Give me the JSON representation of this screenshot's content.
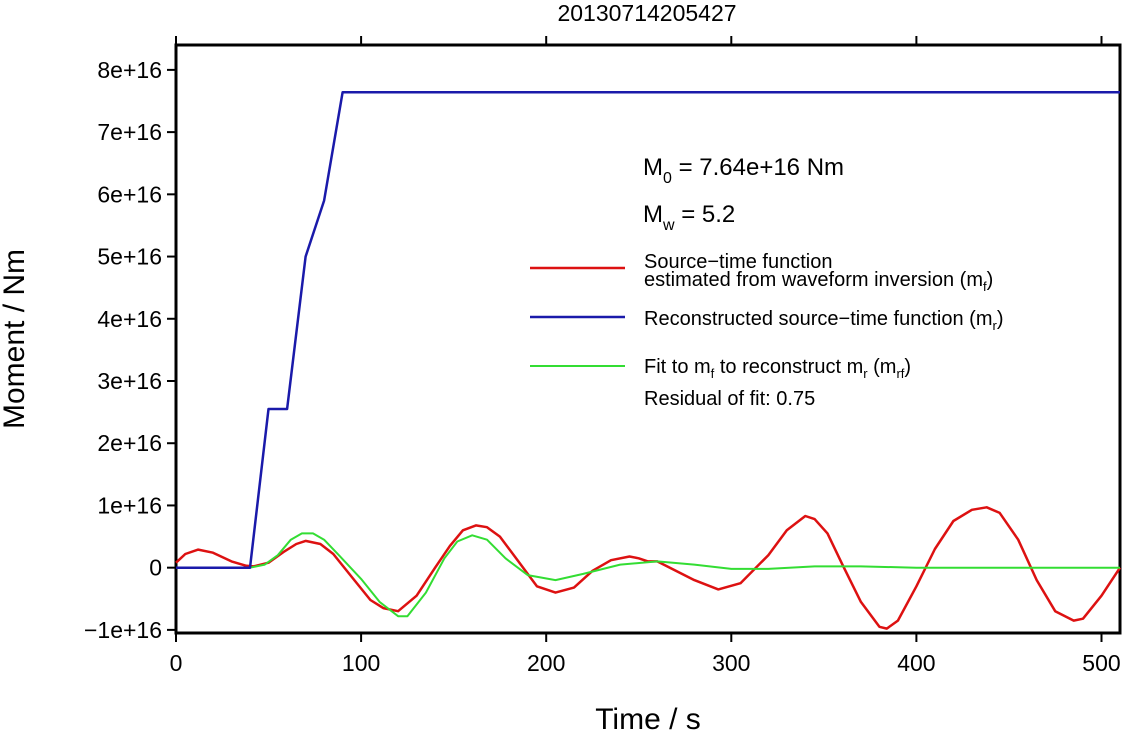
{
  "chart_data": {
    "type": "line",
    "title": "20130714205427",
    "xlabel": "Time / s",
    "ylabel": "Moment / Nm",
    "xlim": [
      0,
      510
    ],
    "ylim": [
      -1.05e+16,
      8.4e+16
    ],
    "x_ticks": [
      0,
      100,
      200,
      300,
      400,
      500
    ],
    "x_tick_labels": [
      "0",
      "100",
      "200",
      "300",
      "400",
      "500"
    ],
    "y_ticks": [
      -1e+16,
      0,
      1e+16,
      2e+16,
      3e+16,
      4e+16,
      5e+16,
      6e+16,
      7e+16,
      8e+16
    ],
    "y_tick_labels": [
      "−1e+16",
      "0",
      "1e+16",
      "2e+16",
      "3e+16",
      "4e+16",
      "5e+16",
      "6e+16",
      "7e+16",
      "8e+16"
    ],
    "grid": false,
    "legend_position": "right",
    "annotations": {
      "m0": "M0 = 7.64e+16 Nm",
      "m0_prefix": "M",
      "m0_sub": "0",
      "m0_rest": " = 7.64e+16 Nm",
      "mw": "Mw = 5.2",
      "mw_prefix": "M",
      "mw_sub": "w",
      "mw_rest": " = 5.2",
      "residual": "Residual of fit: 0.75"
    },
    "series": [
      {
        "name": "Source−time function estimated from waveform inversion (mf)",
        "legend_line1": "Source−time function",
        "legend_line2": "estimated from waveform inversion (m",
        "legend_sub": "f",
        "legend_tail": ")",
        "color": "#dd1111",
        "x": [
          0,
          5,
          12,
          20,
          30,
          38,
          42,
          50,
          58,
          65,
          70,
          78,
          85,
          95,
          105,
          112,
          120,
          130,
          140,
          148,
          155,
          162,
          168,
          175,
          185,
          195,
          205,
          215,
          225,
          235,
          245,
          250,
          255,
          260,
          270,
          280,
          293,
          305,
          320,
          330,
          340,
          345,
          352,
          360,
          370,
          380,
          384,
          390,
          400,
          410,
          420,
          430,
          438,
          445,
          455,
          465,
          475,
          485,
          490,
          500,
          510
        ],
        "values": [
          800000000000000.0,
          2200000000000000.0,
          2900000000000000.0,
          2400000000000000.0,
          1000000000000000.0,
          300000000000000.0,
          200000000000000.0,
          800000000000000.0,
          2500000000000000.0,
          3800000000000000.0,
          4300000000000000.0,
          3800000000000000.0,
          2200000000000000.0,
          -1500000000000000.0,
          -5200000000000000.0,
          -6500000000000000.0,
          -7000000000000000.0,
          -4500000000000000.0,
          0.0,
          3500000000000000.0,
          6000000000000000.0,
          6800000000000000.0,
          6500000000000000.0,
          5000000000000000.0,
          1000000000000000.0,
          -3000000000000000.0,
          -4000000000000000.0,
          -3200000000000000.0,
          -500000000000000.0,
          1200000000000000.0,
          1800000000000000.0,
          1500000000000000.0,
          1000000000000000.0,
          1000000000000000.0,
          -500000000000000.0,
          -2000000000000000.0,
          -3500000000000000.0,
          -2500000000000000.0,
          2000000000000000.0,
          6000000000000000.0,
          8300000000000000.0,
          7800000000000000.0,
          5500000000000000.0,
          500000000000000.0,
          -5500000000000000.0,
          -9500000000000000.0,
          -9800000000000000.0,
          -8500000000000000.0,
          -3000000000000000.0,
          3000000000000000.0,
          7500000000000000.0,
          9300000000000000.0,
          9700000000000000.0,
          8800000000000000.0,
          4500000000000000.0,
          -2000000000000000.0,
          -7000000000000000.0,
          -8500000000000000.0,
          -8200000000000000.0,
          -4500000000000000.0,
          0.0
        ]
      },
      {
        "name": "Reconstructed source−time function (mr)",
        "legend_line1": "Reconstructed source−time function (m",
        "legend_sub": "r",
        "legend_tail": ")",
        "color": "#1a1aaa",
        "x": [
          0,
          40,
          50,
          60,
          70,
          80,
          90,
          510
        ],
        "values": [
          0,
          0,
          2.55e+16,
          2.55e+16,
          5e+16,
          5.9e+16,
          7.64e+16,
          7.64e+16
        ]
      },
      {
        "name": "Fit to mf to reconstruct mr (mrf)",
        "legend_line1": "Fit to m",
        "legend_sub1": "f",
        "legend_mid": " to reconstruct m",
        "legend_sub2": "r",
        "legend_mid2": " (m",
        "legend_sub3": "rf",
        "legend_tail": ")",
        "color": "#33dd33",
        "x": [
          0,
          40,
          48,
          55,
          62,
          68,
          74,
          80,
          88,
          100,
          110,
          120,
          125,
          135,
          145,
          152,
          160,
          168,
          178,
          190,
          205,
          220,
          240,
          260,
          280,
          300,
          320,
          345,
          370,
          400,
          430,
          460,
          490,
          510
        ],
        "values": [
          0,
          0,
          500000000000000.0,
          2000000000000000.0,
          4500000000000000.0,
          5500000000000000.0,
          5500000000000000.0,
          4500000000000000.0,
          2000000000000000.0,
          -1800000000000000.0,
          -5500000000000000.0,
          -7800000000000000.0,
          -7800000000000000.0,
          -4000000000000000.0,
          1500000000000000.0,
          4200000000000000.0,
          5200000000000000.0,
          4500000000000000.0,
          1500000000000000.0,
          -1200000000000000.0,
          -2000000000000000.0,
          -1000000000000000.0,
          500000000000000.0,
          1000000000000000.0,
          500000000000000.0,
          -200000000000000.0,
          -200000000000000.0,
          200000000000000.0,
          200000000000000.0,
          0.0,
          0.0,
          0.0,
          0.0,
          0.0
        ]
      }
    ]
  }
}
